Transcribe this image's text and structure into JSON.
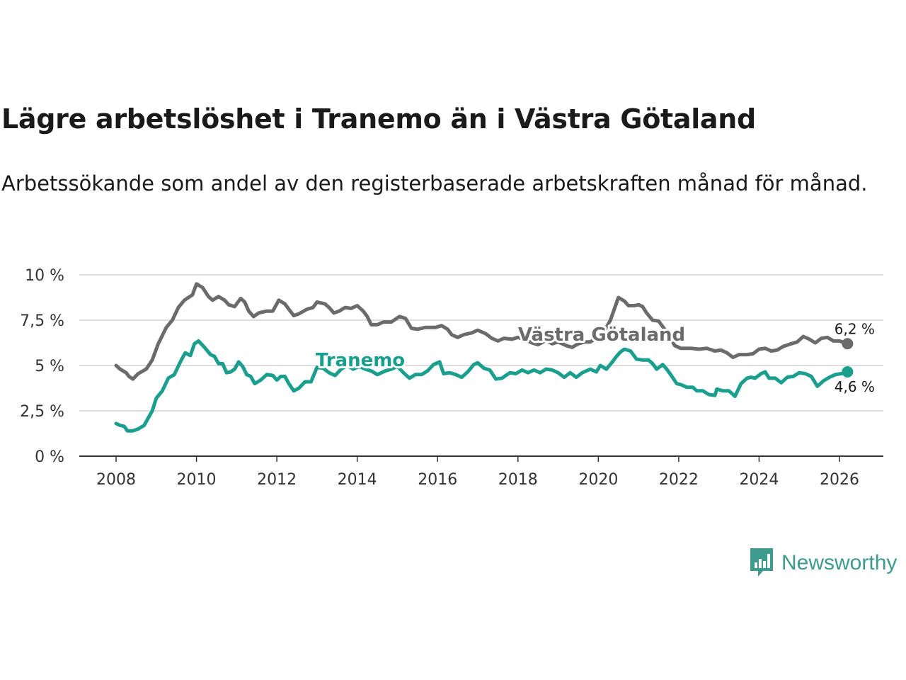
{
  "title": "Lägre arbetslöshet i Tranemo än i Västra Götaland",
  "subtitle": "Arbetssökande som andel av den registerbaserade arbetskraften månad för månad.",
  "brand": {
    "name": "Newsworthy",
    "color": "#3d9a8d"
  },
  "chart_data": {
    "type": "line",
    "ylim": [
      0,
      10
    ],
    "xlim": [
      2007.6,
      2026.9
    ],
    "yticks": [
      0,
      2.5,
      5,
      7.5,
      10
    ],
    "ytick_labels": [
      "0 %",
      "2,5 %",
      "5 %",
      "7,5 %",
      "10 %"
    ],
    "xticks": [
      2008,
      2010,
      2012,
      2014,
      2016,
      2018,
      2020,
      2022,
      2024,
      2026
    ],
    "xtick_labels": [
      "2008",
      "2010",
      "2012",
      "2014",
      "2016",
      "2018",
      "2020",
      "2022",
      "2024",
      "2026"
    ],
    "grid": true,
    "series": [
      {
        "name": "Västra Götaland",
        "color": "#6b6b6b",
        "end_label": "6,2 %",
        "points": [
          [
            2008.0,
            5.0
          ],
          [
            2008.1,
            4.8
          ],
          [
            2008.25,
            4.6
          ],
          [
            2008.32,
            4.4
          ],
          [
            2008.42,
            4.25
          ],
          [
            2008.55,
            4.55
          ],
          [
            2008.75,
            4.8
          ],
          [
            2008.9,
            5.3
          ],
          [
            2009.05,
            6.2
          ],
          [
            2009.25,
            7.1
          ],
          [
            2009.4,
            7.5
          ],
          [
            2009.55,
            8.2
          ],
          [
            2009.7,
            8.6
          ],
          [
            2009.9,
            8.9
          ],
          [
            2010.0,
            9.5
          ],
          [
            2010.15,
            9.3
          ],
          [
            2010.3,
            8.8
          ],
          [
            2010.4,
            8.6
          ],
          [
            2010.55,
            8.8
          ],
          [
            2010.7,
            8.6
          ],
          [
            2010.8,
            8.35
          ],
          [
            2010.95,
            8.25
          ],
          [
            2011.1,
            8.7
          ],
          [
            2011.2,
            8.5
          ],
          [
            2011.3,
            8.0
          ],
          [
            2011.42,
            7.7
          ],
          [
            2011.55,
            7.9
          ],
          [
            2011.75,
            8.0
          ],
          [
            2011.9,
            8.0
          ],
          [
            2012.05,
            8.6
          ],
          [
            2012.2,
            8.4
          ],
          [
            2012.3,
            8.1
          ],
          [
            2012.42,
            7.75
          ],
          [
            2012.55,
            7.85
          ],
          [
            2012.75,
            8.1
          ],
          [
            2012.9,
            8.2
          ],
          [
            2013.0,
            8.5
          ],
          [
            2013.2,
            8.4
          ],
          [
            2013.3,
            8.2
          ],
          [
            2013.42,
            7.9
          ],
          [
            2013.55,
            8.0
          ],
          [
            2013.7,
            8.2
          ],
          [
            2013.85,
            8.15
          ],
          [
            2014.0,
            8.3
          ],
          [
            2014.15,
            8.0
          ],
          [
            2014.25,
            7.7
          ],
          [
            2014.35,
            7.25
          ],
          [
            2014.5,
            7.25
          ],
          [
            2014.65,
            7.4
          ],
          [
            2014.85,
            7.4
          ],
          [
            2015.05,
            7.7
          ],
          [
            2015.2,
            7.6
          ],
          [
            2015.35,
            7.05
          ],
          [
            2015.5,
            7.0
          ],
          [
            2015.7,
            7.1
          ],
          [
            2015.95,
            7.1
          ],
          [
            2016.1,
            7.2
          ],
          [
            2016.25,
            7.0
          ],
          [
            2016.35,
            6.7
          ],
          [
            2016.5,
            6.55
          ],
          [
            2016.65,
            6.7
          ],
          [
            2016.85,
            6.8
          ],
          [
            2017.0,
            6.95
          ],
          [
            2017.2,
            6.75
          ],
          [
            2017.35,
            6.5
          ],
          [
            2017.5,
            6.35
          ],
          [
            2017.65,
            6.5
          ],
          [
            2017.85,
            6.45
          ],
          [
            2018.0,
            6.55
          ],
          [
            2018.2,
            6.4
          ],
          [
            2018.35,
            6.25
          ],
          [
            2018.5,
            6.15
          ],
          [
            2018.7,
            6.4
          ],
          [
            2018.85,
            6.2
          ],
          [
            2019.0,
            6.3
          ],
          [
            2019.2,
            6.1
          ],
          [
            2019.35,
            6.0
          ],
          [
            2019.5,
            6.2
          ],
          [
            2019.65,
            6.3
          ],
          [
            2019.8,
            6.3
          ],
          [
            2019.95,
            6.5
          ],
          [
            2020.1,
            6.7
          ],
          [
            2020.3,
            7.5
          ],
          [
            2020.5,
            8.75
          ],
          [
            2020.65,
            8.55
          ],
          [
            2020.75,
            8.3
          ],
          [
            2020.9,
            8.3
          ],
          [
            2021.0,
            8.35
          ],
          [
            2021.1,
            8.25
          ],
          [
            2021.2,
            7.9
          ],
          [
            2021.35,
            7.5
          ],
          [
            2021.5,
            7.45
          ],
          [
            2021.65,
            7.0
          ],
          [
            2021.8,
            6.5
          ],
          [
            2021.9,
            6.1
          ],
          [
            2022.05,
            5.95
          ],
          [
            2022.3,
            5.95
          ],
          [
            2022.5,
            5.9
          ],
          [
            2022.7,
            5.95
          ],
          [
            2022.9,
            5.8
          ],
          [
            2023.05,
            5.85
          ],
          [
            2023.2,
            5.7
          ],
          [
            2023.35,
            5.45
          ],
          [
            2023.5,
            5.6
          ],
          [
            2023.7,
            5.6
          ],
          [
            2023.85,
            5.65
          ],
          [
            2024.0,
            5.9
          ],
          [
            2024.15,
            5.95
          ],
          [
            2024.3,
            5.8
          ],
          [
            2024.45,
            5.85
          ],
          [
            2024.6,
            6.05
          ],
          [
            2024.8,
            6.2
          ],
          [
            2024.95,
            6.3
          ],
          [
            2025.1,
            6.6
          ],
          [
            2025.25,
            6.45
          ],
          [
            2025.4,
            6.25
          ],
          [
            2025.55,
            6.5
          ],
          [
            2025.7,
            6.55
          ],
          [
            2025.85,
            6.35
          ],
          [
            2026.0,
            6.35
          ],
          [
            2026.2,
            6.2
          ]
        ]
      },
      {
        "name": "Tranemo",
        "color": "#1a9e8e",
        "end_label": "4,6 %",
        "points": [
          [
            2008.0,
            1.8
          ],
          [
            2008.1,
            1.7
          ],
          [
            2008.2,
            1.65
          ],
          [
            2008.28,
            1.4
          ],
          [
            2008.42,
            1.4
          ],
          [
            2008.55,
            1.5
          ],
          [
            2008.7,
            1.7
          ],
          [
            2008.8,
            2.1
          ],
          [
            2008.9,
            2.5
          ],
          [
            2009.0,
            3.2
          ],
          [
            2009.15,
            3.6
          ],
          [
            2009.3,
            4.3
          ],
          [
            2009.45,
            4.5
          ],
          [
            2009.6,
            5.2
          ],
          [
            2009.72,
            5.7
          ],
          [
            2009.85,
            5.55
          ],
          [
            2009.95,
            6.2
          ],
          [
            2010.05,
            6.35
          ],
          [
            2010.2,
            6.0
          ],
          [
            2010.35,
            5.6
          ],
          [
            2010.45,
            5.5
          ],
          [
            2010.55,
            5.1
          ],
          [
            2010.65,
            5.1
          ],
          [
            2010.75,
            4.6
          ],
          [
            2010.85,
            4.65
          ],
          [
            2010.95,
            4.8
          ],
          [
            2011.05,
            5.2
          ],
          [
            2011.15,
            4.95
          ],
          [
            2011.25,
            4.5
          ],
          [
            2011.35,
            4.4
          ],
          [
            2011.45,
            4.0
          ],
          [
            2011.6,
            4.2
          ],
          [
            2011.75,
            4.5
          ],
          [
            2011.9,
            4.45
          ],
          [
            2012.0,
            4.2
          ],
          [
            2012.1,
            4.4
          ],
          [
            2012.2,
            4.4
          ],
          [
            2012.3,
            4.0
          ],
          [
            2012.42,
            3.6
          ],
          [
            2012.55,
            3.75
          ],
          [
            2012.7,
            4.1
          ],
          [
            2012.85,
            4.1
          ],
          [
            2013.0,
            4.9
          ],
          [
            2013.15,
            4.85
          ],
          [
            2013.3,
            4.6
          ],
          [
            2013.45,
            4.45
          ],
          [
            2013.6,
            4.8
          ],
          [
            2013.75,
            5.0
          ],
          [
            2013.9,
            4.8
          ],
          [
            2014.05,
            4.95
          ],
          [
            2014.2,
            4.8
          ],
          [
            2014.35,
            4.7
          ],
          [
            2014.5,
            4.5
          ],
          [
            2014.7,
            4.7
          ],
          [
            2014.85,
            4.8
          ],
          [
            2015.0,
            4.95
          ],
          [
            2015.15,
            4.6
          ],
          [
            2015.3,
            4.3
          ],
          [
            2015.45,
            4.5
          ],
          [
            2015.6,
            4.5
          ],
          [
            2015.75,
            4.7
          ],
          [
            2015.9,
            5.05
          ],
          [
            2016.05,
            5.2
          ],
          [
            2016.15,
            4.55
          ],
          [
            2016.3,
            4.6
          ],
          [
            2016.45,
            4.5
          ],
          [
            2016.6,
            4.35
          ],
          [
            2016.75,
            4.65
          ],
          [
            2016.9,
            5.05
          ],
          [
            2017.0,
            5.15
          ],
          [
            2017.15,
            4.85
          ],
          [
            2017.3,
            4.75
          ],
          [
            2017.45,
            4.25
          ],
          [
            2017.6,
            4.3
          ],
          [
            2017.8,
            4.6
          ],
          [
            2017.95,
            4.55
          ],
          [
            2018.1,
            4.75
          ],
          [
            2018.25,
            4.6
          ],
          [
            2018.4,
            4.75
          ],
          [
            2018.55,
            4.6
          ],
          [
            2018.7,
            4.8
          ],
          [
            2018.85,
            4.75
          ],
          [
            2019.0,
            4.6
          ],
          [
            2019.15,
            4.35
          ],
          [
            2019.3,
            4.6
          ],
          [
            2019.45,
            4.35
          ],
          [
            2019.6,
            4.6
          ],
          [
            2019.8,
            4.8
          ],
          [
            2019.95,
            4.65
          ],
          [
            2020.05,
            5.0
          ],
          [
            2020.2,
            4.8
          ],
          [
            2020.35,
            5.2
          ],
          [
            2020.45,
            5.5
          ],
          [
            2020.55,
            5.75
          ],
          [
            2020.65,
            5.9
          ],
          [
            2020.8,
            5.8
          ],
          [
            2020.95,
            5.35
          ],
          [
            2021.1,
            5.3
          ],
          [
            2021.25,
            5.3
          ],
          [
            2021.35,
            5.1
          ],
          [
            2021.45,
            4.8
          ],
          [
            2021.6,
            5.05
          ],
          [
            2021.7,
            4.8
          ],
          [
            2021.8,
            4.5
          ],
          [
            2021.95,
            4.0
          ],
          [
            2022.05,
            3.95
          ],
          [
            2022.2,
            3.8
          ],
          [
            2022.35,
            3.8
          ],
          [
            2022.45,
            3.6
          ],
          [
            2022.6,
            3.6
          ],
          [
            2022.75,
            3.4
          ],
          [
            2022.9,
            3.35
          ],
          [
            2022.95,
            3.7
          ],
          [
            2023.1,
            3.6
          ],
          [
            2023.25,
            3.6
          ],
          [
            2023.4,
            3.3
          ],
          [
            2023.55,
            4.0
          ],
          [
            2023.7,
            4.3
          ],
          [
            2023.8,
            4.35
          ],
          [
            2023.9,
            4.3
          ],
          [
            2024.05,
            4.55
          ],
          [
            2024.15,
            4.65
          ],
          [
            2024.25,
            4.3
          ],
          [
            2024.4,
            4.3
          ],
          [
            2024.55,
            4.05
          ],
          [
            2024.7,
            4.35
          ],
          [
            2024.85,
            4.4
          ],
          [
            2025.0,
            4.6
          ],
          [
            2025.15,
            4.55
          ],
          [
            2025.3,
            4.4
          ],
          [
            2025.45,
            3.85
          ],
          [
            2025.6,
            4.15
          ],
          [
            2025.75,
            4.35
          ],
          [
            2025.9,
            4.5
          ],
          [
            2026.05,
            4.55
          ],
          [
            2026.2,
            4.65
          ]
        ]
      }
    ]
  }
}
